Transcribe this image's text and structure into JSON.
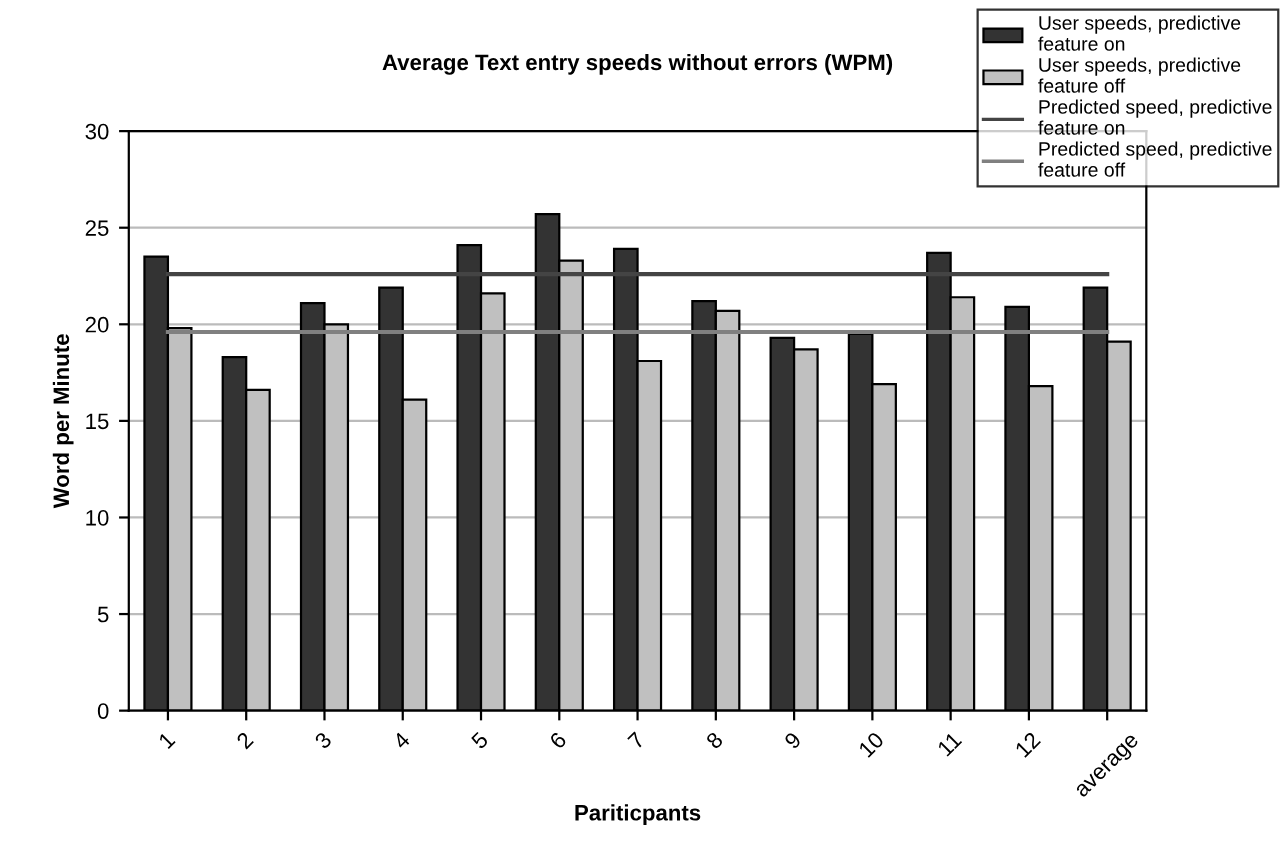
{
  "chart_data": {
    "type": "bar",
    "title": "Average Text entry speeds without errors (WPM)",
    "xlabel": "Pariticpants",
    "ylabel": "Word per Minute",
    "categories": [
      "1",
      "2",
      "3",
      "4",
      "5",
      "6",
      "7",
      "8",
      "9",
      "10",
      "11",
      "12",
      "average"
    ],
    "series": [
      {
        "name": "User speeds, predictive\nfeature on",
        "color": "#333333",
        "values": [
          23.5,
          18.3,
          21.1,
          21.9,
          24.1,
          25.7,
          23.9,
          21.2,
          19.3,
          19.5,
          23.7,
          20.9,
          21.9
        ]
      },
      {
        "name": "User speeds, predictive\nfeature off",
        "color": "#c0c0c0",
        "values": [
          19.8,
          16.6,
          20.0,
          16.1,
          21.6,
          23.3,
          18.1,
          20.7,
          18.7,
          16.9,
          21.4,
          16.8,
          19.1
        ]
      },
      {
        "name": "Predicted speed, predictive\nfeature on",
        "type": "line",
        "color": "#444444",
        "values": [
          22.6,
          22.6,
          22.6,
          22.6,
          22.6,
          22.6,
          22.6,
          22.6,
          22.6,
          22.6,
          22.6,
          22.6,
          22.6
        ]
      },
      {
        "name": "Predicted speed, predictive\nfeature off",
        "type": "line",
        "color": "#808080",
        "values": [
          19.6,
          19.6,
          19.6,
          19.6,
          19.6,
          19.6,
          19.6,
          19.6,
          19.6,
          19.6,
          19.6,
          19.6,
          19.6
        ]
      }
    ],
    "ylim": [
      0,
      30
    ],
    "yticks": [
      0,
      5,
      10,
      15,
      20,
      25,
      30
    ],
    "grid": "y",
    "legend": "top right",
    "marker": "none"
  }
}
